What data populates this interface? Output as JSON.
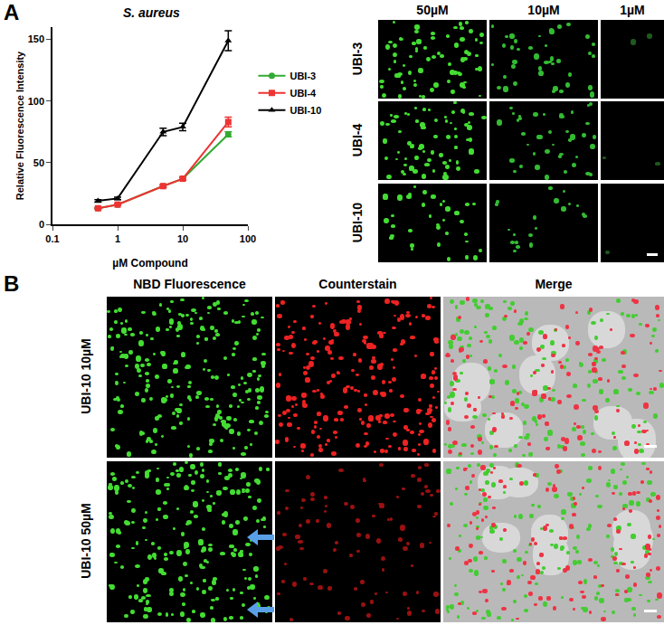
{
  "chart_data": {
    "type": "line",
    "title": "S. aureus",
    "x_label": "µM Compound",
    "y_label": "Relative Fluorescence Intensity",
    "log": "x",
    "xlim": [
      0.1,
      100
    ],
    "xticks": [
      0.1,
      1,
      10,
      100
    ],
    "ylim": [
      0,
      160
    ],
    "yticks": [
      0,
      50,
      100,
      150
    ],
    "grid": false,
    "legend": "right",
    "x": [
      0.5,
      1,
      5,
      10,
      50
    ],
    "series": [
      {
        "name": "UBI-3",
        "color": "#33aa33",
        "marker": "circle",
        "values": [
          13,
          16,
          31,
          37,
          73
        ],
        "errors": [
          0.5,
          0.5,
          1,
          1,
          2
        ]
      },
      {
        "name": "UBI-4",
        "color": "#ee3333",
        "marker": "square",
        "values": [
          13,
          16,
          31,
          37,
          83
        ],
        "errors": [
          0.5,
          0.5,
          1,
          1,
          4
        ]
      },
      {
        "name": "UBI-10",
        "color": "#000000",
        "marker": "triangle-up",
        "values": [
          19,
          21,
          75,
          79,
          149
        ],
        "errors": [
          1,
          1,
          3,
          3,
          8
        ]
      }
    ]
  },
  "panel_a_images": {
    "label": "A",
    "columns": [
      "50µM",
      "10µM",
      "1µM"
    ],
    "rows": [
      "UBI-3",
      "UBI-4",
      "UBI-10"
    ]
  },
  "panel_b_images": {
    "label": "B",
    "columns": [
      "NBD Fluorescence",
      "Counterstain",
      "Merge"
    ],
    "rows": [
      "UBI-10 10µM",
      "UBI-10 50µM"
    ]
  }
}
